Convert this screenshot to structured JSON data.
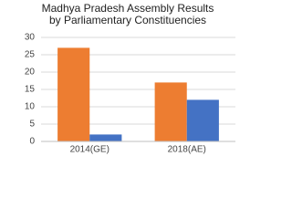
{
  "chart_data": {
    "type": "bar",
    "title": "Madhya Pradesh Assembly Results by Parliamentary Constituencies",
    "categories": [
      "2014(GE)",
      "2018(AE)"
    ],
    "series": [
      {
        "color": "#ed7d31",
        "values": [
          27,
          17
        ]
      },
      {
        "color": "#4472c4",
        "values": [
          2,
          12
        ]
      }
    ],
    "ylim": [
      0,
      30
    ],
    "yticks": [
      0,
      5,
      10,
      15,
      20,
      25,
      30
    ],
    "grid": true
  }
}
